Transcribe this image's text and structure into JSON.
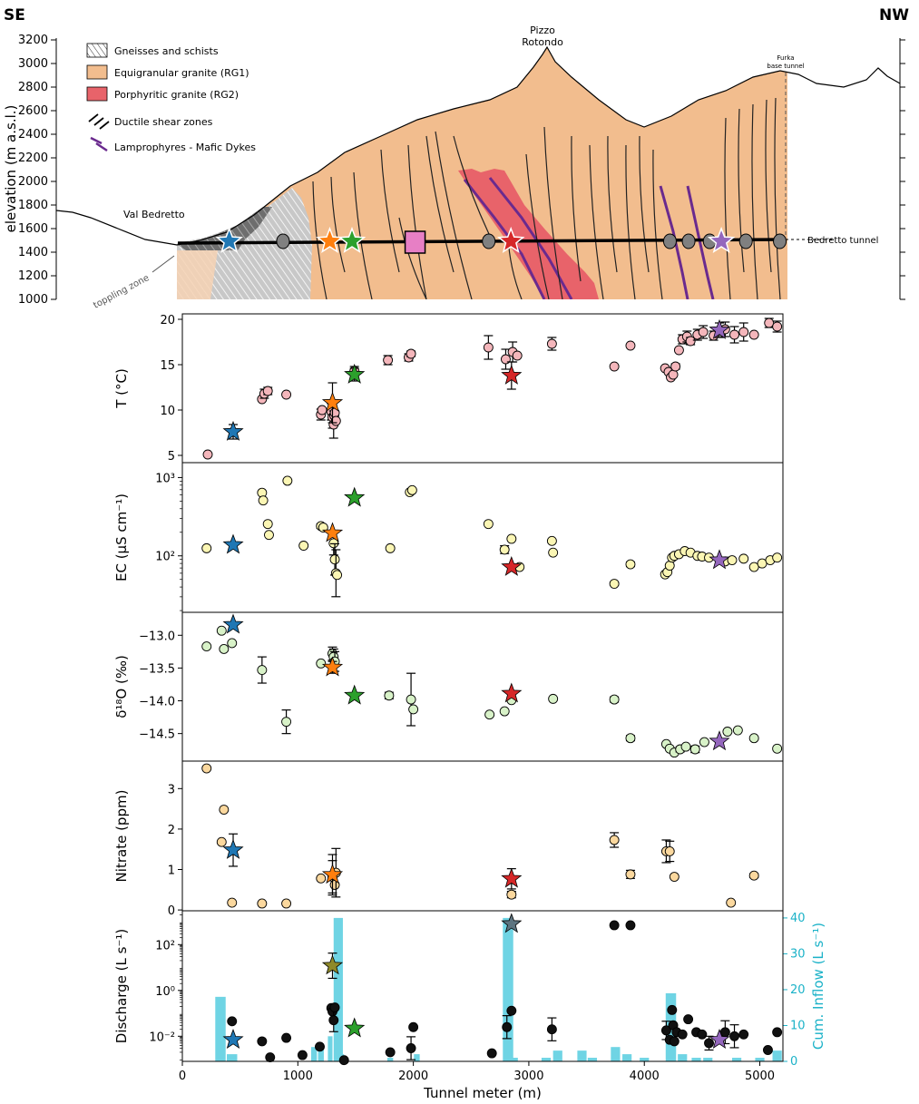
{
  "cross_section": {
    "left_label": "SE",
    "right_label": "NW",
    "ylabel": "elevation (m a.s.l.)",
    "yticks": [
      1000,
      1200,
      1400,
      1600,
      1800,
      2000,
      2200,
      2400,
      2600,
      2800,
      3000,
      3200
    ],
    "ylim": [
      1000,
      3200
    ],
    "legend": [
      {
        "label": "Gneisses and schists",
        "swatch": "gneiss"
      },
      {
        "label": "Equigranular granite (RG1)",
        "swatch": "rg1",
        "color": "#f2bd8e"
      },
      {
        "label": "Porphyritic granite (RG2)",
        "swatch": "rg2",
        "color": "#e8636a"
      },
      {
        "label": "Ductile shear zones",
        "swatch": "shear"
      },
      {
        "label": "Lamprophyres - Mafic Dykes",
        "swatch": "dyke",
        "color": "#6a2a8e"
      }
    ],
    "annotations": {
      "peak_line1": "Pizzo",
      "peak_line2": "Rotondo",
      "valley": "Val Bedretto",
      "toppling": "toppling zone",
      "furka1": "Furka",
      "furka2": "base tunnel",
      "tunnel": "Bedretto tunnel"
    },
    "colors": {
      "rg1": "#f2bd8e",
      "rg2": "#e8636a",
      "gneiss_light": "#c8c8c8",
      "gneiss_dark": "#6e6e6e",
      "dyke": "#6a2a8e"
    }
  },
  "chart_data": [
    {
      "type": "scatter",
      "id": "temperature",
      "ylabel": "T (°C)",
      "ylim": [
        4.2,
        20.6
      ],
      "yticks": [
        5,
        10,
        15,
        20
      ],
      "ytick_labels": [
        "5",
        "10",
        "15",
        "20"
      ],
      "color": "#f4b6bb",
      "x": [
        220,
        690,
        710,
        740,
        900,
        1200,
        1210,
        1290,
        1300,
        1310,
        1315,
        1320,
        1330,
        1490,
        1780,
        1960,
        1980,
        2650,
        2800,
        2860,
        2900,
        3200,
        3740,
        3880,
        4180,
        4210,
        4230,
        4250,
        4270,
        4300,
        4330,
        4370,
        4400,
        4460,
        4510,
        4600,
        4700,
        4780,
        4860,
        4950,
        5080,
        5150
      ],
      "y": [
        5.1,
        11.2,
        11.8,
        12.1,
        11.7,
        9.5,
        10.0,
        9.8,
        9.2,
        8.4,
        9.4,
        9.7,
        8.8,
        14.3,
        15.5,
        15.8,
        16.2,
        16.9,
        15.6,
        16.4,
        16.0,
        17.3,
        14.8,
        17.1,
        14.6,
        14.2,
        13.6,
        13.9,
        14.8,
        16.6,
        17.8,
        18.1,
        17.6,
        18.3,
        18.6,
        18.2,
        18.9,
        18.3,
        18.6,
        18.3,
        19.6,
        19.2
      ],
      "err": [
        0,
        0,
        0.5,
        0.4,
        0,
        0.6,
        0,
        0.9,
        1.2,
        1.5,
        0,
        0,
        0,
        0.5,
        0.5,
        0.4,
        0.3,
        1.3,
        1.1,
        1.1,
        0,
        0.7,
        0,
        0,
        0,
        0,
        0,
        0,
        0.3,
        0,
        0.5,
        0.6,
        0.4,
        0.6,
        0.7,
        0.5,
        0.8,
        0.9,
        1.0,
        0,
        0.5,
        0.6
      ],
      "stars": [
        {
          "x": 440,
          "y": 7.6,
          "err": 0.8,
          "color": "#1f77b4"
        },
        {
          "x": 1300,
          "y": 10.8,
          "err": 2.2,
          "color": "#ff7f0e"
        },
        {
          "x": 1490,
          "y": 13.9,
          "err": 0.7,
          "color": "#2ca02c"
        },
        {
          "x": 2850,
          "y": 13.8,
          "err": 1.5,
          "color": "#d62728"
        },
        {
          "x": 4650,
          "y": 18.8,
          "err": 0.8,
          "color": "#9467bd"
        }
      ]
    },
    {
      "type": "scatter",
      "id": "ec",
      "ylabel": "EC (μS cm⁻¹)",
      "scale": "log",
      "ylim": [
        19,
        1550
      ],
      "yticks": [
        100,
        1000
      ],
      "ytick_labels": [
        "10²",
        "10³"
      ],
      "color": "#fbf6b4",
      "x": [
        210,
        690,
        700,
        740,
        750,
        910,
        1050,
        1200,
        1220,
        1310,
        1320,
        1330,
        1340,
        1800,
        1970,
        1990,
        2650,
        2790,
        2850,
        2920,
        3200,
        3210,
        3740,
        3880,
        4180,
        4200,
        4220,
        4240,
        4260,
        4300,
        4350,
        4400,
        4460,
        4500,
        4560,
        4700,
        4760,
        4860,
        4950,
        5020,
        5090,
        5150
      ],
      "y": [
        125,
        640,
        510,
        255,
        185,
        910,
        135,
        240,
        230,
        145,
        90,
        60,
        57,
        125,
        650,
        690,
        255,
        120,
        165,
        72,
        155,
        110,
        44,
        78,
        58,
        62,
        75,
        95,
        100,
        105,
        115,
        110,
        100,
        98,
        95,
        85,
        88,
        92,
        72,
        80,
        88,
        95
      ],
      "err": [
        0,
        0,
        0,
        0,
        0,
        0,
        0,
        0.03,
        0,
        0.15,
        0.2,
        0.3,
        0,
        0,
        0,
        0,
        0,
        0.05,
        0,
        0,
        0,
        0,
        0.02,
        0.03,
        0,
        0,
        0,
        0,
        0,
        0,
        0,
        0,
        0,
        0,
        0,
        0,
        0,
        0,
        0,
        0,
        0,
        0
      ],
      "stars": [
        {
          "x": 440,
          "y": 138,
          "err": 0,
          "color": "#1f77b4"
        },
        {
          "x": 1300,
          "y": 195,
          "err": 0,
          "color": "#ff7f0e"
        },
        {
          "x": 1490,
          "y": 550,
          "err": 0,
          "color": "#2ca02c"
        },
        {
          "x": 2850,
          "y": 72,
          "err": 0,
          "color": "#d62728"
        },
        {
          "x": 4650,
          "y": 88,
          "err": 0,
          "color": "#9467bd"
        }
      ]
    },
    {
      "type": "scatter",
      "id": "d18o",
      "ylabel": "δ¹⁸O (‰)",
      "ylim": [
        -14.92,
        -12.65
      ],
      "yticks": [
        -14.5,
        -14.0,
        -13.5,
        -13.0
      ],
      "ytick_labels": [
        "−14.5",
        "−14.0",
        "−13.5",
        "−13.0"
      ],
      "color": "#d8f2c8",
      "x": [
        210,
        340,
        360,
        430,
        690,
        900,
        1200,
        1300,
        1310,
        1320,
        1790,
        1980,
        2000,
        2660,
        2790,
        2850,
        3210,
        3740,
        3880,
        4190,
        4220,
        4260,
        4310,
        4360,
        4440,
        4520,
        4720,
        4810,
        4950,
        5150
      ],
      "y": [
        -13.17,
        -12.93,
        -13.21,
        -13.12,
        -13.53,
        -14.32,
        -13.43,
        -13.28,
        -13.33,
        -13.4,
        -13.92,
        -13.98,
        -14.13,
        -14.21,
        -14.16,
        -13.99,
        -13.97,
        -13.98,
        -14.57,
        -14.66,
        -14.73,
        -14.79,
        -14.74,
        -14.7,
        -14.74,
        -14.63,
        -14.47,
        -14.45,
        -14.57,
        -14.73
      ],
      "err": [
        0,
        0,
        0,
        0,
        0.2,
        0.18,
        0,
        0.1,
        0.12,
        0.15,
        0.05,
        0.4,
        0,
        0,
        0,
        0,
        0,
        0.04,
        0.04,
        0,
        0,
        0,
        0.04,
        0,
        0.05,
        0,
        0,
        0,
        0,
        0
      ],
      "stars": [
        {
          "x": 440,
          "y": -12.84,
          "err": 0,
          "color": "#1f77b4"
        },
        {
          "x": 1300,
          "y": -13.49,
          "err": 0.09,
          "color": "#ff7f0e"
        },
        {
          "x": 1490,
          "y": -13.92,
          "err": 0,
          "color": "#2ca02c"
        },
        {
          "x": 2850,
          "y": -13.89,
          "err": 0,
          "color": "#d62728"
        },
        {
          "x": 4650,
          "y": -14.62,
          "err": 0,
          "color": "#9467bd"
        }
      ]
    },
    {
      "type": "scatter",
      "id": "nitrate",
      "ylabel": "Nitrate (ppm)",
      "ylim": [
        -0.02,
        3.68
      ],
      "yticks": [
        0,
        1,
        2,
        3
      ],
      "ytick_labels": [
        "0",
        "1",
        "2",
        "3"
      ],
      "color": "#fbd89e",
      "x": [
        210,
        360,
        340,
        430,
        690,
        900,
        1200,
        1300,
        1320,
        1330,
        2850,
        3740,
        3880,
        4190,
        4220,
        4260,
        4750,
        4950
      ],
      "y": [
        3.5,
        2.48,
        1.68,
        0.18,
        0.16,
        0.16,
        0.78,
        0.82,
        0.62,
        0.92,
        0.38,
        1.73,
        0.88,
        1.45,
        1.45,
        0.82,
        0.18,
        0.85
      ],
      "err": [
        0,
        0,
        0,
        0,
        0,
        0,
        0,
        0.4,
        0,
        0.6,
        0.08,
        0.18,
        0.1,
        0.28,
        0.25,
        0,
        0,
        0.05
      ],
      "stars": [
        {
          "x": 440,
          "y": 1.48,
          "err": 0.4,
          "color": "#1f77b4"
        },
        {
          "x": 1300,
          "y": 0.87,
          "err": 0.5,
          "color": "#ff7f0e"
        },
        {
          "x": 2850,
          "y": 0.77,
          "err": 0.25,
          "color": "#d62728"
        }
      ]
    },
    {
      "type": "scatter+bar",
      "id": "discharge",
      "ylabel": "Discharge (L s⁻¹)",
      "y2label": "Cum. Inflow (L s⁻¹)",
      "xlabel": "Tunnel meter (m)",
      "xlim": [
        0,
        5200
      ],
      "xticks": [
        0,
        1000,
        2000,
        3000,
        4000,
        5000
      ],
      "scale": "log",
      "ylim": [
        0.0008,
        3000
      ],
      "yticks": [
        0.01,
        1,
        100
      ],
      "ytick_labels": [
        "10⁻²",
        "10⁰",
        "10²"
      ],
      "y2lim": [
        0,
        42
      ],
      "y2ticks": [
        0,
        10,
        20,
        30,
        40
      ],
      "color": "#111111",
      "bar_color": "#6fd4e4",
      "bars": {
        "x": [
          330,
          430,
          1140,
          1200,
          1280,
          1350,
          1380,
          1800,
          2030,
          2820,
          2880,
          3150,
          3250,
          3460,
          3550,
          3750,
          3850,
          4000,
          4230,
          4330,
          4450,
          4550,
          4800,
          5000,
          5150
        ],
        "w": [
          90,
          90,
          50,
          50,
          40,
          80,
          40,
          50,
          50,
          90,
          50,
          80,
          80,
          80,
          80,
          80,
          80,
          80,
          90,
          80,
          80,
          80,
          80,
          80,
          80
        ],
        "v": [
          18,
          2,
          4,
          5,
          7,
          40,
          2,
          1,
          2,
          40,
          1,
          1,
          3,
          3,
          1,
          4,
          2,
          1,
          19,
          2,
          1,
          1,
          1,
          1,
          3
        ]
      },
      "x": [
        430,
        690,
        760,
        900,
        1040,
        1190,
        1290,
        1300,
        1310,
        1320,
        1400,
        1800,
        1980,
        2000,
        2680,
        2810,
        2850,
        3200,
        3740,
        3880,
        4190,
        4220,
        4240,
        4250,
        4260,
        4280,
        4330,
        4380,
        4450,
        4500,
        4560,
        4700,
        4780,
        4860,
        5070,
        5150
      ],
      "y": [
        0.045,
        0.006,
        0.0012,
        0.0085,
        0.0015,
        0.0035,
        0.17,
        0.12,
        0.05,
        0.18,
        0.0009,
        0.002,
        0.003,
        0.025,
        0.0018,
        0.025,
        0.13,
        0.02,
        700,
        700,
        0.018,
        0.007,
        0.14,
        0.03,
        0.006,
        0.015,
        0.012,
        0.055,
        0.015,
        0.012,
        0.005,
        0.015,
        0.01,
        0.012,
        0.0025,
        0.015
      ],
      "err": [
        0,
        0,
        0,
        0,
        0,
        0,
        0,
        0,
        0.5,
        0,
        0,
        0,
        0.5,
        0,
        0,
        0.5,
        0,
        0.5,
        0,
        0,
        0.4,
        0,
        0,
        0,
        0,
        0,
        0,
        0,
        0,
        0,
        0.3,
        0.5,
        0.5,
        0,
        0,
        0
      ],
      "stars": [
        {
          "x": 440,
          "y": 0.007,
          "err": 0,
          "color": "#1f77b4"
        },
        {
          "x": 1300,
          "y": 12,
          "err": 0.55,
          "color": "#8f8a2a"
        },
        {
          "x": 1490,
          "y": 0.022,
          "err": 0,
          "color": "#2ca02c"
        },
        {
          "x": 2850,
          "y": 800,
          "err": 0,
          "color": "#5d7480"
        },
        {
          "x": 4650,
          "y": 0.007,
          "err": 0,
          "color": "#9467bd"
        }
      ]
    }
  ]
}
